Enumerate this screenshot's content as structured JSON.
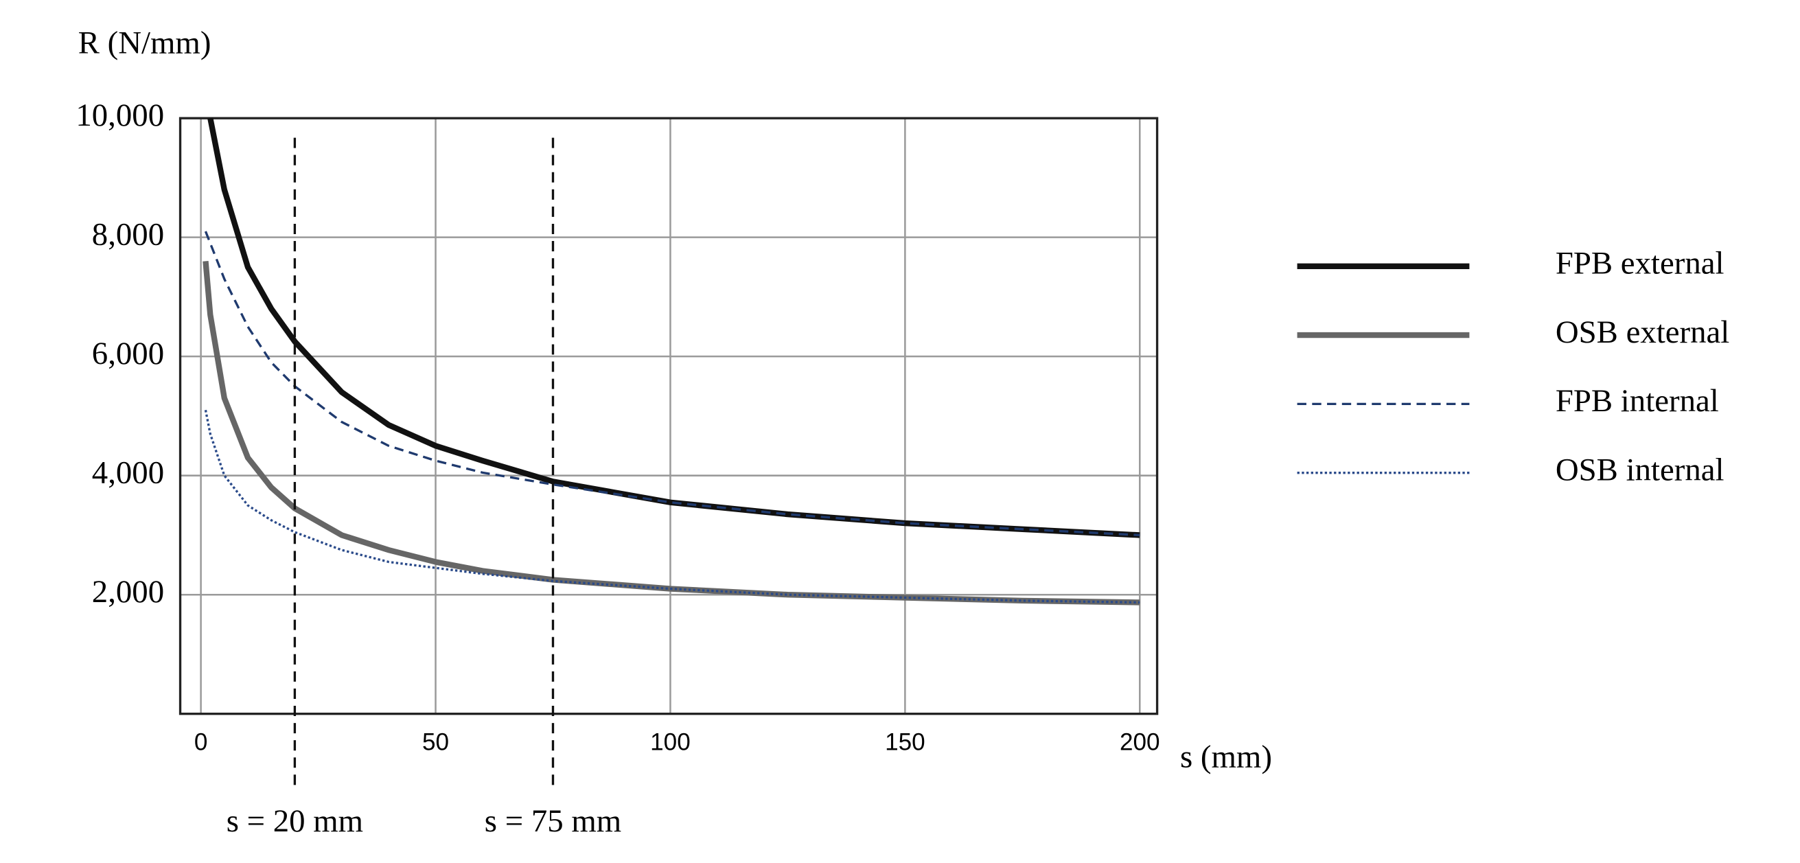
{
  "chart_data": {
    "type": "line",
    "y_label": "R (N/mm)",
    "x_label": "s (mm)",
    "x": [
      1,
      2,
      5,
      10,
      15,
      20,
      30,
      40,
      50,
      60,
      75,
      100,
      125,
      150,
      175,
      200
    ],
    "series": [
      {
        "name": "FPB external",
        "color": "#111111",
        "style": "solid",
        "linewidth": 5,
        "values": [
          null,
          10000,
          8800,
          7500,
          6800,
          6250,
          5400,
          4850,
          4500,
          4250,
          3900,
          3550,
          3350,
          3200,
          3100,
          3000
        ]
      },
      {
        "name": "OSB external",
        "color": "#666666",
        "style": "solid",
        "linewidth": 5,
        "values": [
          7600,
          6700,
          5300,
          4300,
          3800,
          3450,
          3000,
          2750,
          2550,
          2400,
          2250,
          2100,
          2000,
          1950,
          1900,
          1870
        ]
      },
      {
        "name": "FPB internal",
        "color": "#1f3a6e",
        "style": "dashed",
        "linewidth": 2,
        "values": [
          8100,
          7900,
          7300,
          6500,
          5900,
          5500,
          4900,
          4500,
          4250,
          4050,
          3850,
          3550,
          3350,
          3200,
          3100,
          3000
        ]
      },
      {
        "name": "OSB internal",
        "color": "#2a4a8a",
        "style": "dotted",
        "linewidth": 2,
        "values": [
          5100,
          4700,
          4000,
          3500,
          3250,
          3050,
          2750,
          2550,
          2450,
          2350,
          2230,
          2100,
          2000,
          1950,
          1900,
          1870
        ]
      }
    ],
    "xlim": [
      -4.4,
      203.7
    ],
    "ylim": [
      0,
      10000
    ],
    "xticks": [
      0,
      50,
      100,
      150,
      200
    ],
    "yticks": [
      {
        "value": 2000,
        "label": "2,000"
      },
      {
        "value": 4000,
        "label": "4,000"
      },
      {
        "value": 6000,
        "label": "6,000"
      },
      {
        "value": 8000,
        "label": "8,000"
      },
      {
        "value": 10000,
        "label": "10,000"
      }
    ],
    "grid": true,
    "legend": "right",
    "annotations": [
      {
        "x": 20,
        "text": "s = 20 mm"
      },
      {
        "x": 75,
        "text": "s = 75 mm"
      }
    ]
  }
}
